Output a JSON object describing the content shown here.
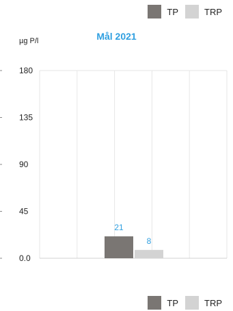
{
  "chart_data": {
    "type": "bar",
    "title": "Mål 2021",
    "ylabel": "µg P/l",
    "xlabel": "",
    "categories": [
      ""
    ],
    "series": [
      {
        "name": "TP",
        "values": [
          21
        ],
        "color": "#7a7673"
      },
      {
        "name": "TRP",
        "values": [
          8
        ],
        "color": "#d3d3d3"
      }
    ],
    "ylim": [
      0,
      180
    ],
    "yticks": [
      "0.0",
      "45",
      "90",
      "135",
      "180"
    ],
    "grid": true,
    "legend": "top-right",
    "title_color": "#2f9fe0",
    "data_label_color": "#2f9fe0"
  },
  "legend_top": [
    {
      "label": "TP",
      "color": "#7a7673"
    },
    {
      "label": "TRP",
      "color": "#d3d3d3"
    }
  ],
  "legend_bottom": [
    {
      "label": "TP",
      "color": "#7a7673"
    },
    {
      "label": "TRP",
      "color": "#d3d3d3"
    }
  ]
}
